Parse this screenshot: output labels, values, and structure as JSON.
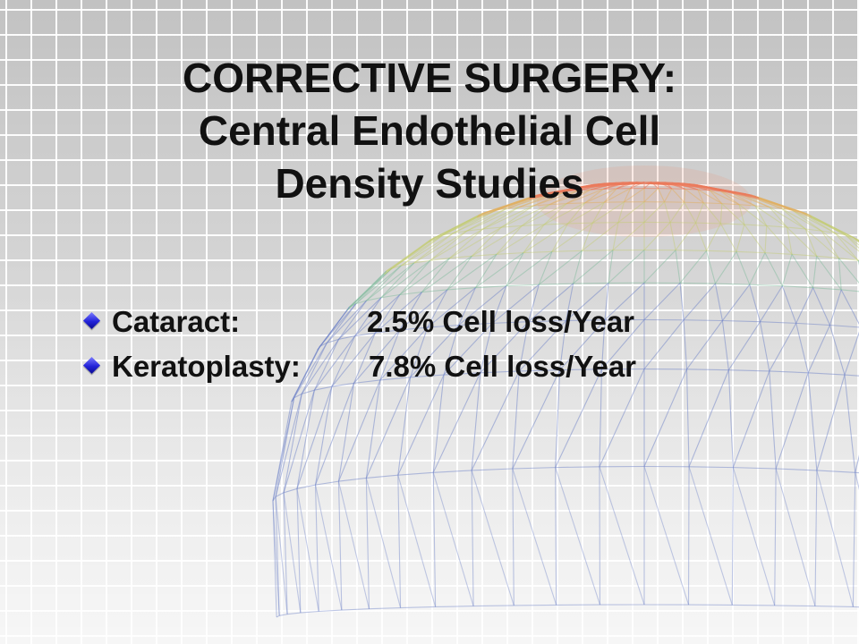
{
  "slide": {
    "title_lines": [
      "CORRECTIVE SURGERY:",
      "Central Endothelial Cell",
      "Density Studies"
    ],
    "bullets": [
      {
        "label": "Cataract:",
        "value": "2.5% Cell loss/Year"
      },
      {
        "label": "Keratoplasty:",
        "value": "7.8% Cell loss/Year"
      }
    ]
  },
  "icons": {
    "bullet": "diamond-bullet-icon",
    "background": "corneal-mesh-dome"
  },
  "colors": {
    "bullet": "#2a2ad6",
    "text": "#111111",
    "background": "#e4e4e4"
  }
}
